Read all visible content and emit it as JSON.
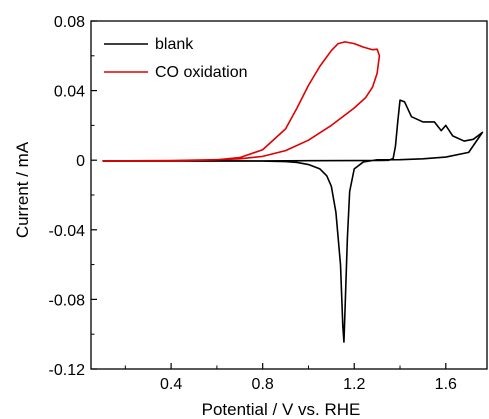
{
  "chart_data": {
    "type": "line",
    "xlabel": "Potential / V vs. RHE",
    "ylabel": "Current / mA",
    "xlim": [
      0.05,
      1.78
    ],
    "ylim": [
      -0.12,
      0.08
    ],
    "xticks": [
      0.4,
      0.8,
      1.2,
      1.6
    ],
    "xtick_labels": [
      "0.4",
      "0.8",
      "1.2",
      "1.6"
    ],
    "yticks": [
      -0.12,
      -0.08,
      -0.04,
      0,
      0.04,
      0.08
    ],
    "ytick_labels": [
      "-0.12",
      "-0.08",
      "-0.04",
      "0",
      "0.04",
      "0.08"
    ],
    "grid": false,
    "legend_position": "top-left",
    "series": [
      {
        "name": "blank",
        "color": "#000000",
        "x": [
          0.1,
          0.4,
          0.8,
          1.0,
          1.2,
          1.35,
          1.37,
          1.38,
          1.39,
          1.4,
          1.42,
          1.45,
          1.5,
          1.55,
          1.58,
          1.6,
          1.63,
          1.68,
          1.72,
          1.75,
          1.76,
          1.7,
          1.6,
          1.5,
          1.4,
          1.3,
          1.24,
          1.2,
          1.18,
          1.17,
          1.16,
          1.155,
          1.15,
          1.14,
          1.12,
          1.1,
          1.08,
          1.05,
          1.0,
          0.95,
          0.9,
          0.8,
          0.6,
          0.4,
          0.1
        ],
        "y": [
          -0.0005,
          -0.0005,
          -0.0004,
          -0.0003,
          -0.0002,
          -0.0001,
          0.001,
          0.008,
          0.022,
          0.0345,
          0.0335,
          0.025,
          0.022,
          0.022,
          0.017,
          0.02,
          0.014,
          0.011,
          0.012,
          0.015,
          0.016,
          0.0045,
          0.0018,
          0.0008,
          0.0003,
          0.0002,
          -0.001,
          -0.005,
          -0.018,
          -0.045,
          -0.085,
          -0.1045,
          -0.095,
          -0.06,
          -0.03,
          -0.015,
          -0.009,
          -0.005,
          -0.0025,
          -0.0013,
          -0.0008,
          -0.0005,
          -0.0004,
          -0.0004,
          -0.0004
        ]
      },
      {
        "name": "CO oxidation",
        "color": "#e00000",
        "x": [
          0.1,
          0.4,
          0.6,
          0.7,
          0.8,
          0.9,
          0.95,
          1.0,
          1.05,
          1.1,
          1.13,
          1.16,
          1.2,
          1.24,
          1.28,
          1.3,
          1.31,
          1.3,
          1.28,
          1.25,
          1.2,
          1.1,
          1.0,
          0.9,
          0.8,
          0.7,
          0.6,
          0.4,
          0.1
        ],
        "y": [
          -0.0005,
          -0.0004,
          0.0002,
          0.0015,
          0.006,
          0.018,
          0.03,
          0.043,
          0.054,
          0.063,
          0.067,
          0.068,
          0.067,
          0.065,
          0.0635,
          0.0638,
          0.06,
          0.05,
          0.042,
          0.036,
          0.03,
          0.02,
          0.0115,
          0.0055,
          0.0022,
          0.0008,
          0.0003,
          -0.0002,
          -0.0004
        ]
      }
    ]
  }
}
